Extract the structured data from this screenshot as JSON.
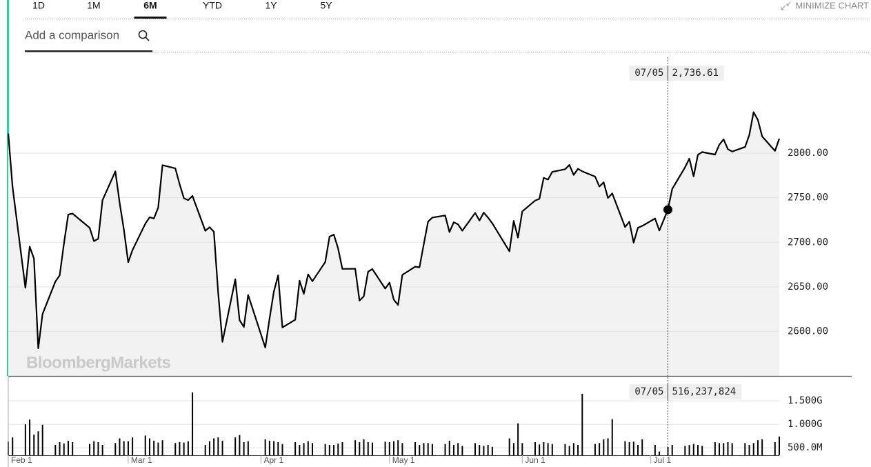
{
  "tabs": [
    {
      "label": "1D"
    },
    {
      "label": "1M"
    },
    {
      "label": "6M",
      "active": true
    },
    {
      "label": "YTD"
    },
    {
      "label": "1Y"
    },
    {
      "label": "5Y"
    }
  ],
  "minimize": "MINIMIZE CHART",
  "comparison_placeholder": "Add a comparison",
  "watermark": "BloombergMarkets",
  "crosshair_label": "07/05",
  "chart_data": [
    {
      "type": "line",
      "x": [
        "Feb 1",
        "Feb 2",
        "Feb 5",
        "Feb 6",
        "Feb 7",
        "Feb 8",
        "Feb 9",
        "Feb 12",
        "Feb 13",
        "Feb 14",
        "Feb 15",
        "Feb 16",
        "Feb 20",
        "Feb 21",
        "Feb 22",
        "Feb 23",
        "Feb 26",
        "Feb 27",
        "Feb 28",
        "Mar 1",
        "Mar 2",
        "Mar 5",
        "Mar 6",
        "Mar 7",
        "Mar 8",
        "Mar 9",
        "Mar 12",
        "Mar 13",
        "Mar 14",
        "Mar 15",
        "Mar 16",
        "Mar 19",
        "Mar 20",
        "Mar 21",
        "Mar 22",
        "Mar 23",
        "Mar 26",
        "Mar 27",
        "Mar 28",
        "Mar 29",
        "Apr 2",
        "Apr 3",
        "Apr 4",
        "Apr 5",
        "Apr 6",
        "Apr 9",
        "Apr 10",
        "Apr 11",
        "Apr 12",
        "Apr 13",
        "Apr 16",
        "Apr 17",
        "Apr 18",
        "Apr 19",
        "Apr 20",
        "Apr 23",
        "Apr 24",
        "Apr 25",
        "Apr 26",
        "Apr 27",
        "Apr 30",
        "May 1",
        "May 2",
        "May 3",
        "May 4",
        "May 7",
        "May 8",
        "May 9",
        "May 10",
        "May 11",
        "May 14",
        "May 15",
        "May 16",
        "May 17",
        "May 18",
        "May 21",
        "May 22",
        "May 23",
        "May 24",
        "May 25",
        "May 29",
        "May 30",
        "May 31",
        "Jun 1",
        "Jun 4",
        "Jun 5",
        "Jun 6",
        "Jun 7",
        "Jun 8",
        "Jun 11",
        "Jun 12",
        "Jun 13",
        "Jun 14",
        "Jun 15",
        "Jun 18",
        "Jun 19",
        "Jun 20",
        "Jun 21",
        "Jun 22",
        "Jun 25",
        "Jun 26",
        "Jun 27",
        "Jun 28",
        "Jun 29",
        "Jul 2",
        "Jul 3",
        "Jul 5",
        "Jul 6",
        "Jul 9",
        "Jul 10",
        "Jul 11",
        "Jul 12",
        "Jul 13",
        "Jul 16",
        "Jul 17",
        "Jul 18",
        "Jul 19",
        "Jul 20",
        "Jul 23",
        "Jul 24",
        "Jul 25",
        "Jul 26",
        "Jul 27",
        "Jul 30",
        "Jul 31"
      ],
      "xlim": [
        "Feb 1",
        "Jul 31"
      ],
      "ylim": [
        2550,
        2910
      ],
      "yticks": [
        {
          "value": 2600,
          "label": "2600.00"
        },
        {
          "value": 2650,
          "label": "2650.00"
        },
        {
          "value": 2700,
          "label": "2700.00"
        },
        {
          "value": 2750,
          "label": "2750.00"
        },
        {
          "value": 2800,
          "label": "2800.00"
        }
      ],
      "grid": true,
      "series": [
        {
          "color": "#000000",
          "fill": "#f2f2f2",
          "values": [
            2821.98,
            2762.13,
            2648.94,
            2695.14,
            2681.66,
            2581.0,
            2619.55,
            2656.0,
            2662.94,
            2698.63,
            2731.2,
            2732.22,
            2716.26,
            2701.33,
            2703.96,
            2747.3,
            2779.6,
            2744.28,
            2713.83,
            2677.67,
            2691.25,
            2720.94,
            2728.12,
            2726.8,
            2738.97,
            2786.57,
            2783.02,
            2765.31,
            2749.48,
            2747.33,
            2752.01,
            2712.92,
            2716.94,
            2711.93,
            2643.69,
            2588.26,
            2658.55,
            2612.62,
            2605.0,
            2640.87,
            2581.88,
            2614.45,
            2644.69,
            2662.84,
            2604.47,
            2613.16,
            2656.87,
            2642.19,
            2663.99,
            2656.3,
            2677.84,
            2706.39,
            2708.64,
            2693.13,
            2670.14,
            2670.29,
            2634.56,
            2639.4,
            2666.94,
            2669.91,
            2648.05,
            2654.8,
            2635.67,
            2629.73,
            2663.42,
            2672.63,
            2671.92,
            2697.79,
            2723.07,
            2727.72,
            2730.13,
            2711.45,
            2722.46,
            2720.13,
            2712.97,
            2733.01,
            2724.44,
            2733.29,
            2727.76,
            2721.33,
            2689.86,
            2724.01,
            2705.27,
            2734.62,
            2746.87,
            2748.8,
            2772.35,
            2770.37,
            2779.03,
            2782.0,
            2786.85,
            2775.63,
            2782.49,
            2779.66,
            2773.75,
            2762.59,
            2767.32,
            2749.76,
            2754.88,
            2717.07,
            2723.06,
            2699.63,
            2716.31,
            2718.37,
            2726.71,
            2713.22,
            2736.61,
            2759.82,
            2784.17,
            2793.84,
            2774.02,
            2798.29,
            2801.31,
            2798.43,
            2809.55,
            2815.62,
            2804.49,
            2801.83,
            2806.98,
            2820.4,
            2846.07,
            2837.44,
            2818.82,
            2802.6,
            2816.29
          ],
          "value_labels": [
            null,
            null,
            null,
            null,
            null,
            null,
            null,
            null,
            null,
            null,
            null,
            null,
            null,
            null,
            null,
            null,
            null,
            null,
            null,
            null,
            null,
            null,
            null,
            null,
            null,
            null,
            null,
            null,
            null,
            null,
            null,
            null,
            null,
            null,
            null,
            null,
            null,
            null,
            null,
            null,
            null,
            null,
            null,
            null,
            null,
            null,
            null,
            null,
            null,
            null,
            null,
            null,
            null,
            null,
            null,
            null,
            null,
            null,
            null,
            null,
            null,
            null,
            null,
            null,
            null,
            null,
            null,
            null,
            null,
            null,
            null,
            null,
            null,
            null,
            null,
            null,
            null,
            null,
            null,
            null,
            null,
            null,
            null,
            null,
            null,
            null,
            null,
            null,
            null,
            null,
            null,
            null,
            null,
            null,
            null,
            null,
            null,
            null,
            null,
            null,
            null,
            null,
            null,
            null,
            null,
            null,
            "2,736.61",
            null,
            null,
            null,
            null,
            null,
            null,
            null,
            null,
            null,
            null,
            null,
            null,
            null,
            null,
            null,
            null,
            null,
            null
          ]
        }
      ]
    },
    {
      "type": "bar",
      "x": [
        "Feb 1",
        "Feb 2",
        "Feb 5",
        "Feb 6",
        "Feb 7",
        "Feb 8",
        "Feb 9",
        "Feb 12",
        "Feb 13",
        "Feb 14",
        "Feb 15",
        "Feb 16",
        "Feb 20",
        "Feb 21",
        "Feb 22",
        "Feb 23",
        "Feb 26",
        "Feb 27",
        "Feb 28",
        "Mar 1",
        "Mar 2",
        "Mar 5",
        "Mar 6",
        "Mar 7",
        "Mar 8",
        "Mar 9",
        "Mar 12",
        "Mar 13",
        "Mar 14",
        "Mar 15",
        "Mar 16",
        "Mar 19",
        "Mar 20",
        "Mar 21",
        "Mar 22",
        "Mar 23",
        "Mar 26",
        "Mar 27",
        "Mar 28",
        "Mar 29",
        "Apr 2",
        "Apr 3",
        "Apr 4",
        "Apr 5",
        "Apr 6",
        "Apr 9",
        "Apr 10",
        "Apr 11",
        "Apr 12",
        "Apr 13",
        "Apr 16",
        "Apr 17",
        "Apr 18",
        "Apr 19",
        "Apr 20",
        "Apr 23",
        "Apr 24",
        "Apr 25",
        "Apr 26",
        "Apr 27",
        "Apr 30",
        "May 1",
        "May 2",
        "May 3",
        "May 4",
        "May 7",
        "May 8",
        "May 9",
        "May 10",
        "May 11",
        "May 14",
        "May 15",
        "May 16",
        "May 17",
        "May 18",
        "May 21",
        "May 22",
        "May 23",
        "May 24",
        "May 25",
        "May 29",
        "May 30",
        "May 31",
        "Jun 1",
        "Jun 4",
        "Jun 5",
        "Jun 6",
        "Jun 7",
        "Jun 8",
        "Jun 11",
        "Jun 12",
        "Jun 13",
        "Jun 14",
        "Jun 15",
        "Jun 18",
        "Jun 19",
        "Jun 20",
        "Jun 21",
        "Jun 22",
        "Jun 25",
        "Jun 26",
        "Jun 27",
        "Jun 28",
        "Jun 29",
        "Jul 2",
        "Jul 3",
        "Jul 5",
        "Jul 6",
        "Jul 9",
        "Jul 10",
        "Jul 11",
        "Jul 12",
        "Jul 13",
        "Jul 16",
        "Jul 17",
        "Jul 18",
        "Jul 19",
        "Jul 20",
        "Jul 23",
        "Jul 24",
        "Jul 25",
        "Jul 26",
        "Jul 27",
        "Jul 30",
        "Jul 31"
      ],
      "xlim": [
        "Feb 1",
        "Jul 31"
      ],
      "xticks": [
        "Feb 1",
        "Mar 1",
        "Apr 1",
        "May 1",
        "Jun 1",
        "Jul 1"
      ],
      "ylim": [
        340000000,
        2000000000
      ],
      "yticks": [
        {
          "value": 500000000,
          "label": "500.0M"
        },
        {
          "value": 1000000000,
          "label": "1.000G"
        },
        {
          "value": 1500000000,
          "label": "1.500G"
        }
      ],
      "grid": true,
      "series": [
        {
          "color": "#000000",
          "values": [
            630000000,
            720000000,
            1000000000,
            1100000000,
            780000000,
            850000000,
            990000000,
            560000000,
            620000000,
            590000000,
            650000000,
            620000000,
            580000000,
            640000000,
            620000000,
            560000000,
            600000000,
            700000000,
            640000000,
            640000000,
            720000000,
            760000000,
            700000000,
            650000000,
            610000000,
            660000000,
            600000000,
            620000000,
            610000000,
            640000000,
            1680000000,
            560000000,
            640000000,
            700000000,
            720000000,
            650000000,
            720000000,
            770000000,
            620000000,
            640000000,
            680000000,
            650000000,
            640000000,
            620000000,
            580000000,
            620000000,
            560000000,
            600000000,
            640000000,
            600000000,
            580000000,
            560000000,
            560000000,
            590000000,
            620000000,
            660000000,
            620000000,
            680000000,
            620000000,
            610000000,
            630000000,
            620000000,
            640000000,
            660000000,
            600000000,
            620000000,
            560000000,
            600000000,
            600000000,
            580000000,
            580000000,
            650000000,
            560000000,
            600000000,
            540000000,
            600000000,
            560000000,
            540000000,
            560000000,
            520000000,
            700000000,
            600000000,
            1020000000,
            600000000,
            620000000,
            570000000,
            620000000,
            600000000,
            580000000,
            580000000,
            540000000,
            600000000,
            560000000,
            1650000000,
            580000000,
            600000000,
            680000000,
            700000000,
            1110000000,
            640000000,
            620000000,
            630000000,
            560000000,
            680000000,
            560000000,
            420000000,
            516237824,
            560000000,
            540000000,
            560000000,
            580000000,
            560000000,
            540000000,
            620000000,
            600000000,
            600000000,
            620000000,
            600000000,
            600000000,
            560000000,
            600000000,
            660000000,
            680000000,
            620000000,
            740000000
          ],
          "value_labels": [
            null,
            null,
            null,
            null,
            null,
            null,
            null,
            null,
            null,
            null,
            null,
            null,
            null,
            null,
            null,
            null,
            null,
            null,
            null,
            null,
            null,
            null,
            null,
            null,
            null,
            null,
            null,
            null,
            null,
            null,
            null,
            null,
            null,
            null,
            null,
            null,
            null,
            null,
            null,
            null,
            null,
            null,
            null,
            null,
            null,
            null,
            null,
            null,
            null,
            null,
            null,
            null,
            null,
            null,
            null,
            null,
            null,
            null,
            null,
            null,
            null,
            null,
            null,
            null,
            null,
            null,
            null,
            null,
            null,
            null,
            null,
            null,
            null,
            null,
            null,
            null,
            null,
            null,
            null,
            null,
            null,
            null,
            null,
            null,
            null,
            null,
            null,
            null,
            null,
            null,
            null,
            null,
            null,
            null,
            null,
            null,
            null,
            null,
            null,
            null,
            null,
            null,
            null,
            null,
            null,
            null,
            "516,237,824",
            null,
            null,
            null,
            null,
            null,
            null,
            null,
            null,
            null,
            null,
            null,
            null,
            null,
            null,
            null,
            null,
            null,
            null
          ]
        }
      ]
    }
  ]
}
